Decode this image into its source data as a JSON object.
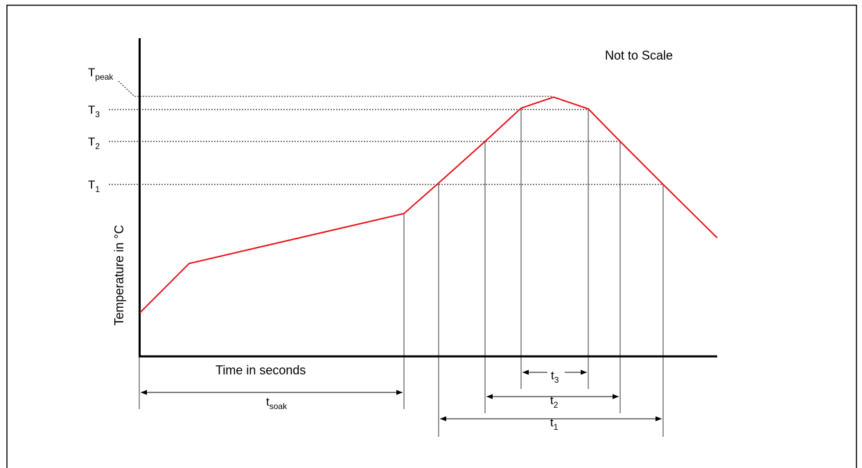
{
  "note": "Not to Scale",
  "y_axis_label": "Temperature in °C",
  "x_axis_label": "Time in seconds",
  "curve_color": "#e8141b",
  "temperature_levels": [
    {
      "key": "peak",
      "base": "T",
      "sub": "peak"
    },
    {
      "key": "t3",
      "base": "T",
      "sub": "3"
    },
    {
      "key": "t2",
      "base": "T",
      "sub": "2"
    },
    {
      "key": "t1",
      "base": "T",
      "sub": "1"
    }
  ],
  "time_intervals": [
    {
      "key": "soak",
      "base": "t",
      "sub": "soak"
    },
    {
      "key": "t3",
      "base": "t",
      "sub": "3"
    },
    {
      "key": "t2",
      "base": "t",
      "sub": "2"
    },
    {
      "key": "t1",
      "base": "t",
      "sub": "1"
    }
  ]
}
